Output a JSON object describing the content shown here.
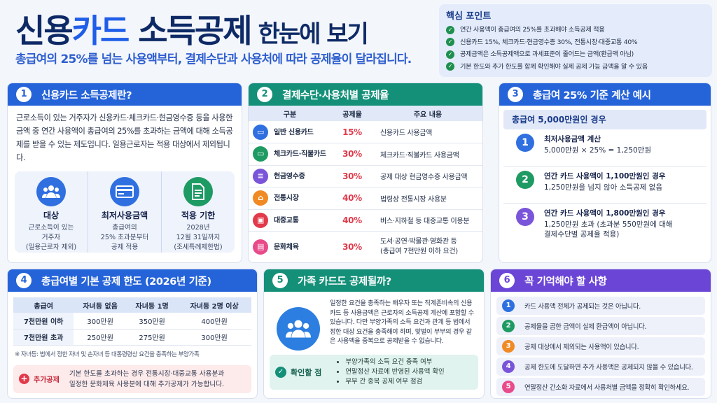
{
  "header": {
    "title_part1": "신용",
    "title_part2": "카드",
    "title_part3": " 소득공제",
    "title_small": "한눈에 보기",
    "subtitle": "총급여의 25%를 넘는 사용액부터, 결제수단과 사용처에 따라 공제율이 달라집니다."
  },
  "key_points": {
    "title": "핵심 포인트",
    "items": [
      "연간 사용액이 총급여의 25%를 초과해야 소득공제 적용",
      "신용카드 15%, 체크카드·현금영수증 30%, 전통시장·대중교통 40%",
      "공제금액은 소득공제액으로 과세표준이 줄어드는 금액(환급액 아님)",
      "기본 한도와 추가 한도를 함께 확인해야 실제 공제 가능 금액을 알 수 있음"
    ]
  },
  "card1": {
    "num": "1",
    "title": "신용카드 소득공제란?",
    "desc": "근로소득이 있는 거주자가 신용카드·체크카드·현금영수증 등을 사용한 금액 중 연간 사용액이 총급여의 25%를 초과하는 금액에 대해 소득공제를 받을 수 있는 제도입니다. 일용근로자는 적용 대상에서 제외됩니다.",
    "stats": [
      {
        "icon": "people-icon",
        "label": "대상",
        "l1": "근로소득이 있는",
        "l2": "거주자",
        "l3": "(일용근로자 제외)"
      },
      {
        "icon": "card-icon",
        "label": "최저사용금액",
        "l1": "총급여의",
        "l2": "25% 초과분부터",
        "l3": "공제 적용"
      },
      {
        "icon": "document-icon",
        "label": "적용 기한",
        "l1": "2028년",
        "l2": "12월 31일까지",
        "l3": "(조세특례제한법)"
      }
    ]
  },
  "card2": {
    "num": "2",
    "title": "결제수단·사용처별 공제율",
    "headers": [
      "구분",
      "공제율",
      "주요 내용"
    ],
    "rows": [
      {
        "icon": "credit-card-icon",
        "label": "일반 신용카드",
        "rate": "15%",
        "desc": "신용카드 사용금액",
        "desc2": ""
      },
      {
        "icon": "debit-card-icon",
        "label": "체크카드·직불카드",
        "rate": "30%",
        "desc": "체크카드·직불카드 사용금액",
        "desc2": ""
      },
      {
        "icon": "receipt-icon",
        "label": "현금영수증",
        "rate": "30%",
        "desc": "공제 대상 현금영수증 사용금액",
        "desc2": ""
      },
      {
        "icon": "market-icon",
        "label": "전통시장",
        "rate": "40%",
        "desc": "법령상 전통시장 사용분",
        "desc2": ""
      },
      {
        "icon": "bus-icon",
        "label": "대중교통",
        "rate": "40%",
        "desc": "버스·지하철 등 대중교통 이용분",
        "desc2": ""
      },
      {
        "icon": "ticket-icon",
        "label": "문화체육",
        "rate": "30%",
        "desc": "도서·공연·박물관·영화관 등",
        "desc2": "(총급여 7천만원 이하 요건)"
      }
    ],
    "colors": {
      "blue": "#2f6fe0",
      "green": "#1e9a63",
      "purple": "#7a55d9",
      "orange": "#f08a24",
      "red": "#e23a4b",
      "pink": "#e84b8a"
    }
  },
  "card3": {
    "num": "3",
    "title": "총급여 25% 기준 계산 예시",
    "case": "총급여 5,000만원인 경우",
    "steps": [
      {
        "n": "1",
        "title": "최저사용금액 계산",
        "l1": "5,000만원 × 25% = 1,250만원",
        "l2": ""
      },
      {
        "n": "2",
        "title": "연간 카드 사용액이 1,100만원인 경우",
        "l1": "1,250만원을 넘지 않아 소득공제 없음",
        "l2": ""
      },
      {
        "n": "3",
        "title": "연간 카드 사용액이 1,800만원인 경우",
        "l1": "1,250만원 초과 (초과분 550만원에 대해",
        "l2": "결제수단별 공제율 적용)"
      }
    ]
  },
  "card4": {
    "num": "4",
    "title": "총급여별 기본 공제 한도 (2026년 기준)",
    "headers": [
      "총급여",
      "자녀등 없음",
      "자녀등 1명",
      "자녀등 2명 이상"
    ],
    "rows": [
      [
        "7천만원 이하",
        "300만원",
        "350만원",
        "400만원"
      ],
      [
        "7천만원 초과",
        "250만원",
        "275만원",
        "300만원"
      ]
    ],
    "note": "※ 자녀등: 법에서 정한 자녀 및 손자녀 등 대통령령상 요건을 충족하는 부양가족",
    "extra_label": "추가공제",
    "extra_l1": "기본 한도를 초과하는 경우 전통시장·대중교통 사용분과",
    "extra_l2": "일정한 문화체육 사용분에 대해 추가공제가 가능합니다."
  },
  "card5": {
    "num": "5",
    "title": "가족 카드도 공제될까?",
    "desc": "일정한 요건을 충족하는 배우자 또는 직계존비속의 신용카드 등 사용금액은 근로자의 소득공제 계산에 포함할 수 있습니다. 다만 부양가족의 소득 요건과 관계 등 법에서 정한 대상 요건을 충족해야 하며, 맞벌이 부부의 경우 같은 사용액을 중복으로 공제받을 수 없습니다.",
    "check_label": "확인할 점",
    "checks": [
      "부양가족의 소득 요건 충족 여부",
      "연말정산 자료에 반영된 사용액 확인",
      "부부 간 중복 공제 여부 점검"
    ]
  },
  "card6": {
    "num": "6",
    "title": "꼭 기억해야 할 사항",
    "items": [
      {
        "n": "1",
        "text": "카드 사용액 전체가 공제되는 것은 아닙니다.",
        "color": "#2f6fe0"
      },
      {
        "n": "2",
        "text": "공제율을 곱한 금액이 실제 환급액이 아닙니다.",
        "color": "#1e9a63"
      },
      {
        "n": "3",
        "text": "공제 대상에서 제외되는 사용액이 있습니다.",
        "color": "#f08a24"
      },
      {
        "n": "4",
        "text": "공제 한도에 도달하면 추가 사용액은 공제되지 않을 수 있습니다.",
        "color": "#7a55d9"
      },
      {
        "n": "5",
        "text": "연말정산 간소화 자료에서 사용처별 금액을 정확히 확인하세요.",
        "color": "#e84b8a"
      }
    ]
  }
}
